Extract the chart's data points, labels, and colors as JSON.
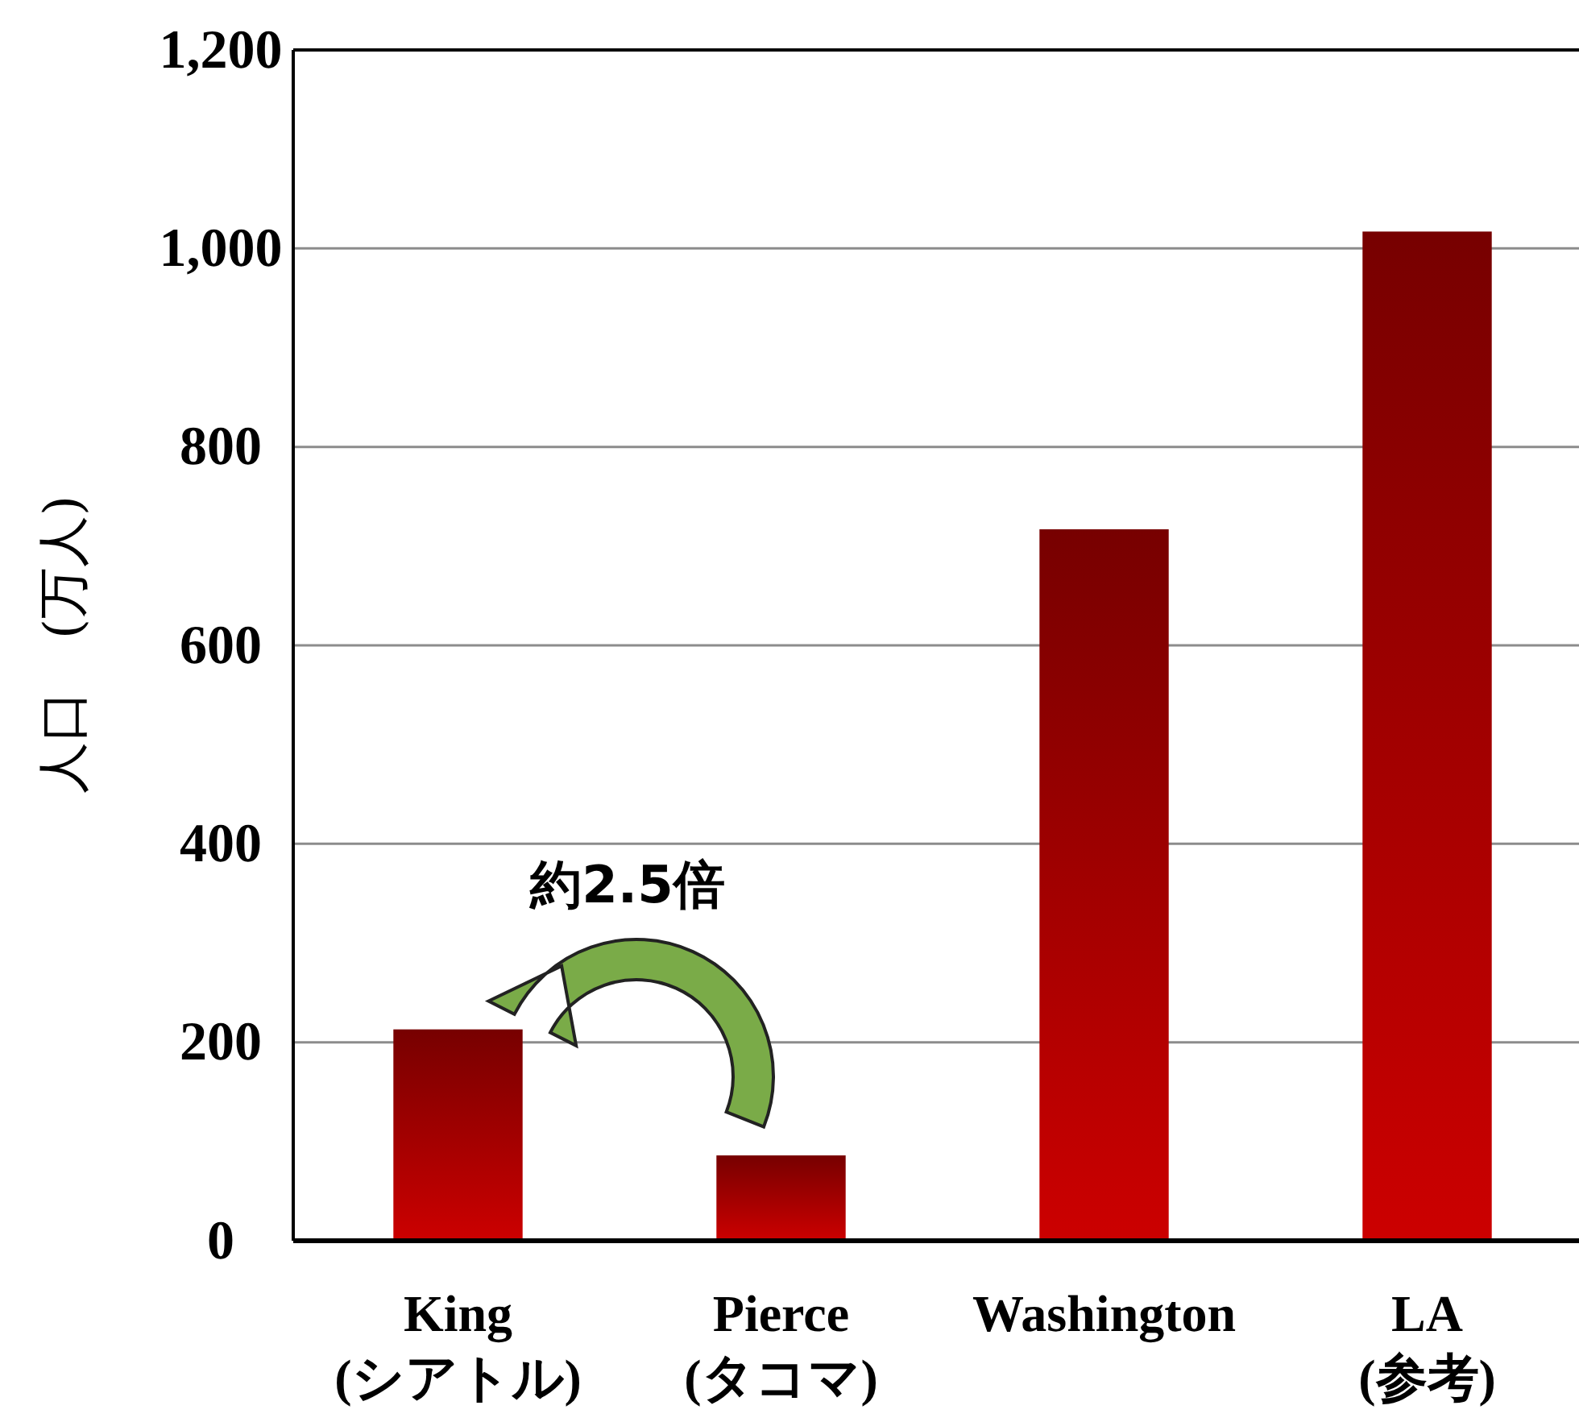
{
  "chart_data": {
    "type": "bar",
    "ylabel": "人口　(万人)",
    "categories": [
      "King (シアトル)",
      "Pierce (タコマ)",
      "Washington",
      "LA (参考)"
    ],
    "values": [
      213,
      86,
      717,
      1017
    ],
    "color": "#cc0000",
    "ylim": [
      0,
      1200
    ],
    "yticks": [
      0,
      200,
      400,
      600,
      800,
      {
        "value": 1000,
        "label": "1,000"
      },
      {
        "value": 1200,
        "label": "1,200"
      }
    ],
    "grid": "y",
    "annotations": [
      "約2.5倍"
    ]
  }
}
